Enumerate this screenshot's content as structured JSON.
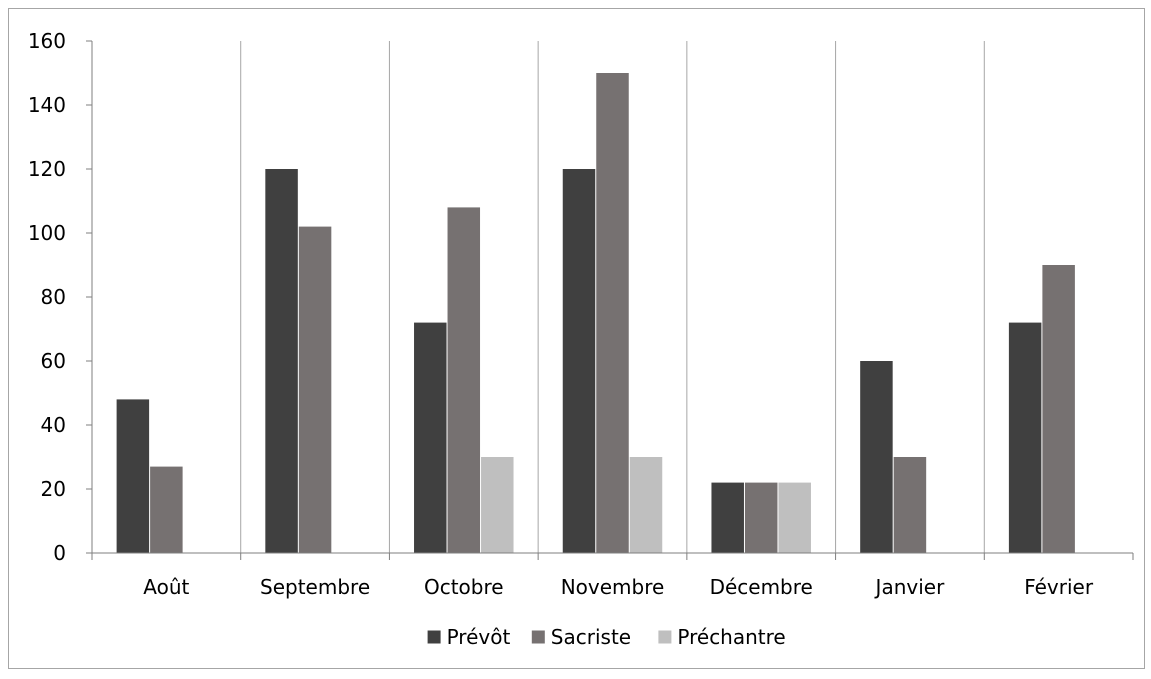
{
  "chart_data": {
    "type": "bar",
    "categories": [
      "Août",
      "Septembre",
      "Octobre",
      "Novembre",
      "Décembre",
      "Janvier",
      "Février"
    ],
    "series": [
      {
        "name": "Prévôt",
        "color": "#404040",
        "values": [
          48,
          120,
          72,
          120,
          22,
          60,
          72
        ]
      },
      {
        "name": "Sacriste",
        "color": "#767171",
        "values": [
          27,
          102,
          108,
          150,
          22,
          30,
          90
        ]
      },
      {
        "name": "Préchantre",
        "color": "#bfbfbf",
        "values": [
          0,
          0,
          30,
          30,
          22,
          0,
          0
        ]
      }
    ],
    "ylim": [
      0,
      160
    ],
    "yticks": [
      0,
      20,
      40,
      60,
      80,
      100,
      120,
      140,
      160
    ],
    "title": "",
    "xlabel": "",
    "ylabel": "",
    "grid": "vertical category separators",
    "legend_position": "bottom"
  }
}
